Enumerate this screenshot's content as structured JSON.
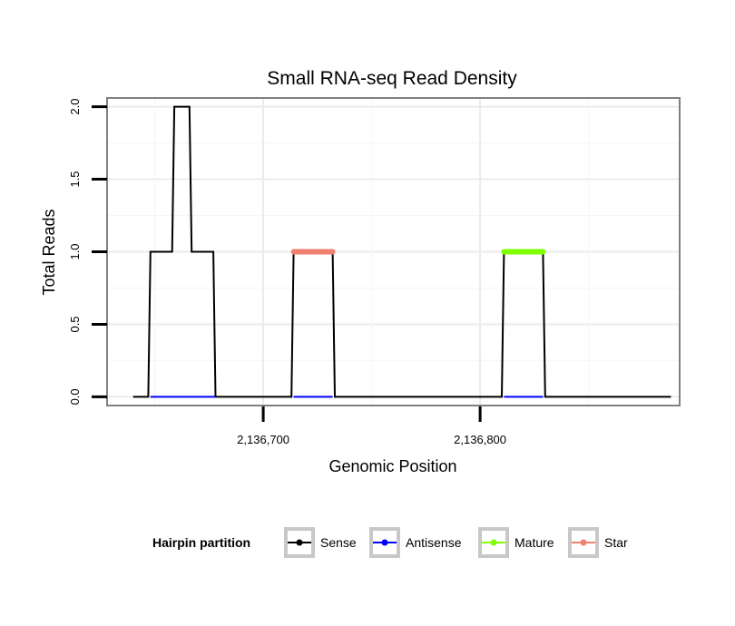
{
  "chart_data": {
    "type": "line",
    "title": "Small RNA-seq Read Density",
    "xlabel": "Genomic Position",
    "ylabel": "Total Reads",
    "xlim": [
      2136628,
      2136892
    ],
    "ylim": [
      -0.06,
      2.06
    ],
    "xticks": [
      2136700,
      2136800
    ],
    "xtick_labels": [
      "2,136,700",
      "2,136,800"
    ],
    "yticks": [
      0,
      0.5,
      1,
      1.5,
      2
    ],
    "ytick_labels": [
      "0.0",
      "0.5",
      "1.0",
      "1.5",
      "2.0"
    ],
    "grid": true,
    "legend": {
      "title": "Hairpin partition",
      "position": "bottom",
      "entries": [
        {
          "name": "Sense",
          "color": "#000000"
        },
        {
          "name": "Antisense",
          "color": "#0000ff"
        },
        {
          "name": "Mature",
          "color": "#7fff00"
        },
        {
          "name": "Star",
          "color": "#f08070"
        }
      ]
    },
    "series": [
      {
        "name": "Sense",
        "color": "#000000",
        "x": [
          2136640,
          2136647,
          2136648,
          2136658,
          2136659,
          2136666,
          2136667,
          2136677,
          2136678,
          2136713,
          2136714,
          2136732,
          2136733,
          2136810,
          2136811,
          2136829,
          2136830,
          2136888
        ],
        "y": [
          0,
          0,
          1,
          1,
          2,
          2,
          1,
          1,
          0,
          0,
          1,
          1,
          0,
          0,
          1,
          1,
          0,
          0
        ]
      },
      {
        "name": "Antisense",
        "color": "#0000ff",
        "x": [
          2136648,
          2136678,
          null,
          2136714,
          2136732,
          null,
          2136811,
          2136829
        ],
        "y": [
          0,
          0,
          null,
          0,
          0,
          null,
          0,
          0
        ]
      },
      {
        "name": "Star",
        "color": "#f08070",
        "x": [
          2136714,
          2136732
        ],
        "y": [
          1,
          1
        ]
      },
      {
        "name": "Mature",
        "color": "#7fff00",
        "x": [
          2136811,
          2136829
        ],
        "y": [
          1,
          1
        ]
      }
    ]
  }
}
